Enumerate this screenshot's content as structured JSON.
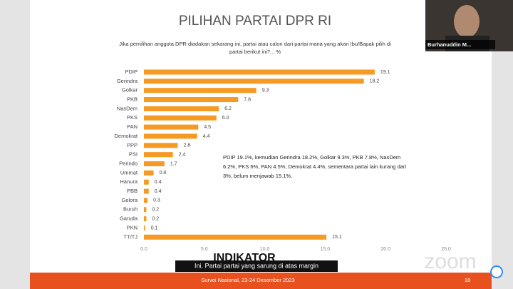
{
  "chart_data": {
    "type": "bar",
    "orientation": "horizontal",
    "title": "PILIHAN PARTAI DPR RI",
    "subtitle": [
      "Jika pemilihan anggota DPR diadakan sekarang ini, partai atau calon dari partai mana yang akan Ibu/Bapak pilih di",
      "partai berikut ini?... %"
    ],
    "categories": [
      "PDIP",
      "Gerindra",
      "Golkar",
      "PKB",
      "NasDem",
      "PKS",
      "PAN",
      "Demokrat",
      "PPP",
      "PSI",
      "Perindo",
      "Ummat",
      "Hanura",
      "PBB",
      "Gelora",
      "Buruh",
      "Garuda",
      "PKN",
      "TT/TJ"
    ],
    "values": [
      19.1,
      18.2,
      9.3,
      7.8,
      6.2,
      6.0,
      4.5,
      4.4,
      2.8,
      2.4,
      1.7,
      0.8,
      0.4,
      0.4,
      0.3,
      0.2,
      0.2,
      0.1,
      15.1
    ],
    "value_labels": [
      "19.1",
      "18.2",
      "9.3",
      "7.8",
      "6.2",
      "6.0",
      "4.5",
      "4.4",
      "2.8",
      "2.4",
      "1.7",
      "0.8",
      "0.4",
      "0.4",
      "0.3",
      "0.2",
      "0.2",
      "0.1",
      "15.1"
    ],
    "color": "#f59a23",
    "xlim": [
      0,
      25
    ],
    "xticks": [
      {
        "value": 0,
        "label": "0.0"
      },
      {
        "value": 5,
        "label": "5.0"
      },
      {
        "value": 10,
        "label": "10.0"
      },
      {
        "value": 15,
        "label": "15.0"
      },
      {
        "value": 20,
        "label": "20.0"
      },
      {
        "value": 25,
        "label": "25.0"
      }
    ],
    "grid": false,
    "annotation": [
      "PDIP 19.1%, kemudian Gerindra 18.2%, Golkar 9.3%, PKB 7.8%, NasDem",
      "6.2%, PKS 6%, PAN 4.5%, Demokrat 4.4%, sementara partai lain kurang dari",
      "3%, belum menjawab 15.1%."
    ]
  },
  "logo": "INDIKATOR",
  "footer": {
    "survey": "Survei Nasional, 23-24 Desember 2023",
    "page": "18"
  },
  "participant": {
    "name": "Burhanuddin M..."
  },
  "caption": "Ini. Partai partai yang sarung di atas margin",
  "watermark": "zoom"
}
